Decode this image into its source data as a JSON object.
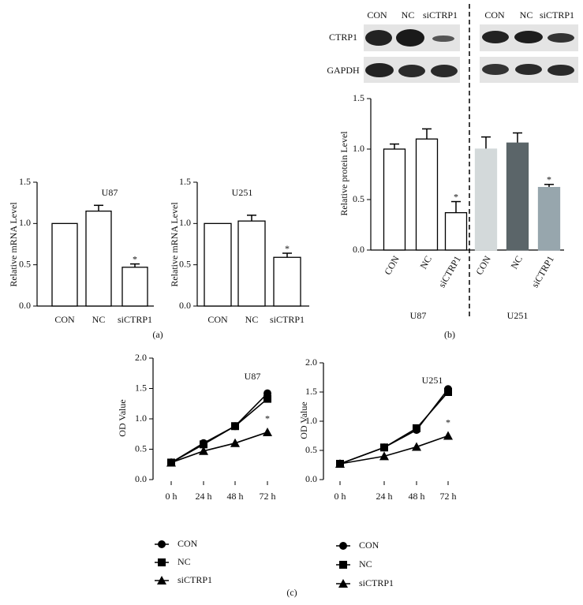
{
  "panel_labels": [
    "(a)",
    "(b)",
    "(c)"
  ],
  "blot": {
    "lanes": [
      "CON",
      "NC",
      "siCTRP1"
    ],
    "rows": [
      "CTRP1",
      "GAPDH"
    ]
  },
  "chart_data": [
    {
      "type": "bar",
      "title": "U87",
      "ylabel": "Relative mRNA Level",
      "categories": [
        "CON",
        "NC",
        "siCTRP1"
      ],
      "values": [
        1.0,
        1.15,
        0.47
      ],
      "errors": [
        null,
        0.07,
        0.04
      ],
      "color": "#ffffff",
      "ylim": [
        0,
        1.5
      ],
      "yticks": [
        {
          "value": 0,
          "label": "0.0"
        },
        {
          "value": 0.5,
          "label": "0.5"
        },
        {
          "value": 1,
          "label": "1.0"
        },
        {
          "value": 1.5,
          "label": "1.5"
        }
      ],
      "annotations": [
        {
          "text": "*",
          "category": "siCTRP1"
        }
      ]
    },
    {
      "type": "bar",
      "title": "U251",
      "ylabel": "Relative mRNA Level",
      "categories": [
        "CON",
        "NC",
        "siCTRP1"
      ],
      "values": [
        1.0,
        1.03,
        0.59
      ],
      "errors": [
        null,
        0.07,
        0.05
      ],
      "color": "#ffffff",
      "ylim": [
        0,
        1.5
      ],
      "yticks": [
        {
          "value": 0,
          "label": "0.0"
        },
        {
          "value": 0.5,
          "label": "0.5"
        },
        {
          "value": 1,
          "label": "1.0"
        },
        {
          "value": 1.5,
          "label": "1.5"
        }
      ],
      "annotations": [
        {
          "text": "*",
          "category": "siCTRP1"
        }
      ]
    },
    {
      "type": "bar",
      "ylabel": "Relative protein Level",
      "categories": [
        "CON",
        "NC",
        "siCTRP1",
        "CON",
        "NC",
        "siCTRP1"
      ],
      "groups": [
        "U87",
        "U251"
      ],
      "values": [
        1.0,
        1.1,
        0.37,
        1.0,
        1.06,
        0.62
      ],
      "errors": [
        0.05,
        0.1,
        0.11,
        0.12,
        0.1,
        0.03
      ],
      "colors": [
        "#ffffff",
        "#ffffff",
        "#ffffff",
        "#d3d9da",
        "#5b6569",
        "#97a6ad"
      ],
      "ylim": [
        0,
        1.5
      ],
      "yticks": [
        {
          "value": 0,
          "label": "0.0"
        },
        {
          "value": 0.5,
          "label": "0.5"
        },
        {
          "value": 1,
          "label": "1.0"
        },
        {
          "value": 1.5,
          "label": "1.5"
        }
      ],
      "annotations": [
        {
          "text": "*",
          "category": "siCTRP1",
          "group": "U87"
        },
        {
          "text": "*",
          "category": "siCTRP1",
          "group": "U251"
        }
      ]
    },
    {
      "type": "line",
      "title": "U87",
      "ylabel": "OD Value",
      "categories": [
        "0 h",
        "24 h",
        "48 h",
        "72 h"
      ],
      "series": [
        {
          "name": "CON",
          "color": "#000000",
          "marker": "circle",
          "values": [
            0.28,
            0.6,
            0.88,
            1.42
          ]
        },
        {
          "name": "NC",
          "color": "#000000",
          "marker": "square",
          "values": [
            0.28,
            0.58,
            0.88,
            1.33
          ]
        },
        {
          "name": "siCTRP1",
          "color": "#000000",
          "marker": "triangle",
          "values": [
            0.28,
            0.47,
            0.6,
            0.78
          ]
        }
      ],
      "ylim": [
        0,
        2
      ],
      "yticks": [
        {
          "value": 0,
          "label": "0.0"
        },
        {
          "value": 0.5,
          "label": "0.5"
        },
        {
          "value": 1,
          "label": "1.0"
        },
        {
          "value": 1.5,
          "label": "1.5"
        },
        {
          "value": 2,
          "label": "2.0"
        }
      ],
      "annotations": [
        {
          "text": "*",
          "series": "siCTRP1",
          "x": "72 h"
        }
      ]
    },
    {
      "type": "line",
      "title": "U251",
      "ylabel": "OD Value",
      "categories": [
        "0 h",
        "24 h",
        "48 h",
        "72 h"
      ],
      "series": [
        {
          "name": "CON",
          "color": "#000000",
          "marker": "circle",
          "values": [
            0.27,
            0.55,
            0.85,
            1.55
          ]
        },
        {
          "name": "NC",
          "color": "#000000",
          "marker": "square",
          "values": [
            0.27,
            0.55,
            0.88,
            1.5
          ]
        },
        {
          "name": "siCTRP1",
          "color": "#000000",
          "marker": "triangle",
          "values": [
            0.27,
            0.4,
            0.56,
            0.75
          ]
        }
      ],
      "ylim": [
        0,
        2
      ],
      "yticks": [
        {
          "value": 0,
          "label": "0.0"
        },
        {
          "value": 0.5,
          "label": "0.5"
        },
        {
          "value": 1,
          "label": "1.0"
        },
        {
          "value": 1.5,
          "label": "1.5"
        },
        {
          "value": 2,
          "label": "2.0"
        }
      ],
      "annotations": [
        {
          "text": "*",
          "series": "siCTRP1",
          "x": "72 h"
        }
      ]
    }
  ]
}
